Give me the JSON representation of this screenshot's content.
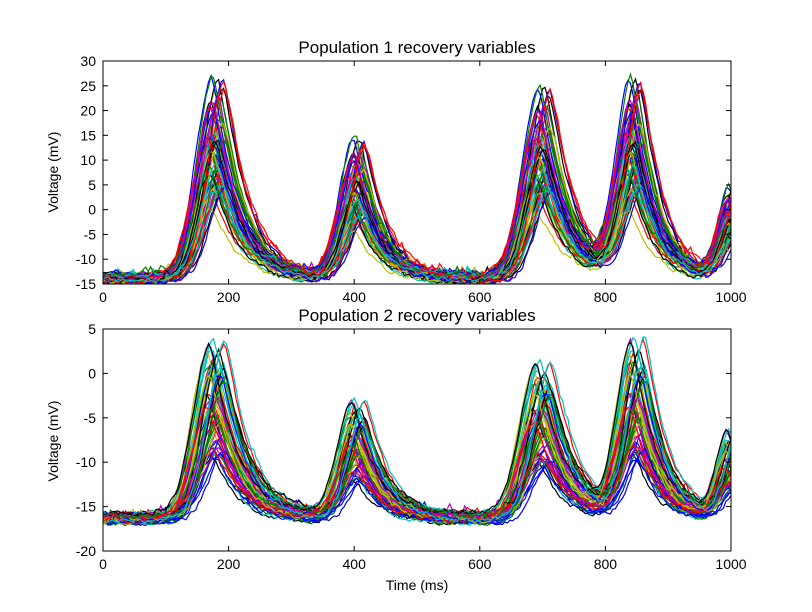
{
  "colors": [
    "#0000ff",
    "#008000",
    "#ff0000",
    "#00bfbf",
    "#bf00bf",
    "#bfbf00",
    "#000000"
  ],
  "chart_data": [
    {
      "type": "line",
      "title": "Population 1 recovery variables",
      "xlabel": "",
      "ylabel": "Voltage (mV)",
      "xlim": [
        0,
        1000
      ],
      "ylim": [
        -15,
        30
      ],
      "xticks": [
        "0",
        "200",
        "400",
        "600",
        "800",
        "1000"
      ],
      "yticks": [
        "-15",
        "-10",
        "-5",
        "0",
        "5",
        "10",
        "15",
        "20",
        "25",
        "30"
      ],
      "baseline": -14,
      "bursts": [
        {
          "center": 180,
          "peak": 28.2,
          "width": 45
        },
        {
          "center": 405,
          "peak": 15.3,
          "width": 40
        },
        {
          "center": 700,
          "peak": 26.2,
          "width": 45
        },
        {
          "center": 845,
          "peak": 27.0,
          "width": 40
        },
        {
          "center": 1000,
          "peak": 5.0,
          "width": 30
        }
      ],
      "series_count": 60
    },
    {
      "type": "line",
      "title": "Population 2 recovery variables",
      "xlabel": "Time (ms)",
      "ylabel": "Voltage (mV)",
      "xlim": [
        0,
        1000
      ],
      "ylim": [
        -20,
        5
      ],
      "xticks": [
        "0",
        "200",
        "400",
        "600",
        "800",
        "1000"
      ],
      "yticks": [
        "-20",
        "-15",
        "-10",
        "-5",
        "0",
        "5"
      ],
      "baseline": -16.3,
      "bursts": [
        {
          "center": 180,
          "peak": 4.2,
          "width": 45
        },
        {
          "center": 405,
          "peak": -2.7,
          "width": 40
        },
        {
          "center": 700,
          "peak": 1.8,
          "width": 45
        },
        {
          "center": 850,
          "peak": 4.1,
          "width": 40
        },
        {
          "center": 1000,
          "peak": -6.5,
          "width": 30
        }
      ],
      "series_count": 60
    }
  ]
}
